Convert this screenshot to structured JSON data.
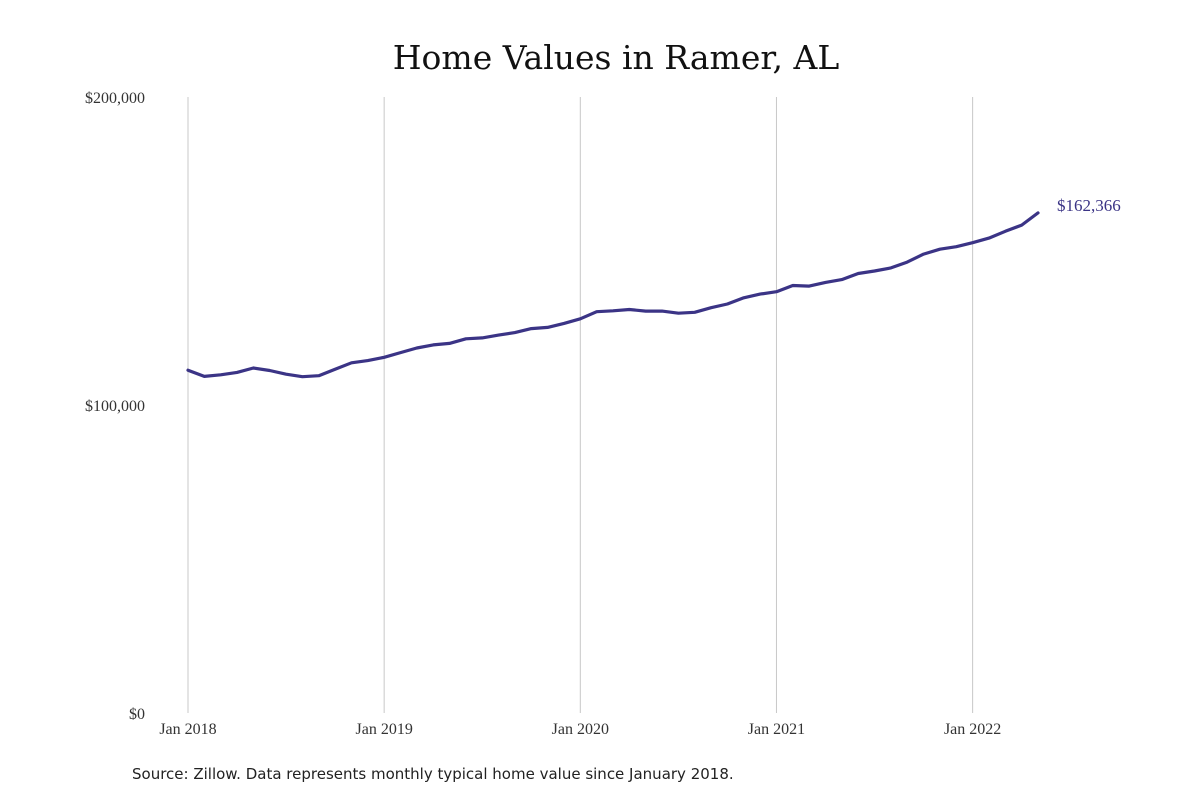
{
  "chart_data": {
    "type": "line",
    "title": "Home Values in Ramer, AL",
    "xlabel": "",
    "ylabel": "",
    "ylim": [
      0,
      200000
    ],
    "y_ticks": [
      {
        "value": 0,
        "label": "$0"
      },
      {
        "value": 100000,
        "label": "$100,000"
      },
      {
        "value": 200000,
        "label": "$200,000"
      }
    ],
    "x_ticks": [
      {
        "value": "2018-01",
        "label": "Jan 2018"
      },
      {
        "value": "2019-01",
        "label": "Jan 2019"
      },
      {
        "value": "2020-01",
        "label": "Jan 2020"
      },
      {
        "value": "2021-01",
        "label": "Jan 2021"
      },
      {
        "value": "2022-01",
        "label": "Jan 2022"
      }
    ],
    "grid": "vertical",
    "series": [
      {
        "color": "#3b3486",
        "x": [
          "2018-01",
          "2018-02",
          "2018-03",
          "2018-04",
          "2018-05",
          "2018-06",
          "2018-07",
          "2018-08",
          "2018-09",
          "2018-10",
          "2018-11",
          "2018-12",
          "2019-01",
          "2019-02",
          "2019-03",
          "2019-04",
          "2019-05",
          "2019-06",
          "2019-07",
          "2019-08",
          "2019-09",
          "2019-10",
          "2019-11",
          "2019-12",
          "2020-01",
          "2020-02",
          "2020-03",
          "2020-04",
          "2020-05",
          "2020-06",
          "2020-07",
          "2020-08",
          "2020-09",
          "2020-10",
          "2020-11",
          "2020-12",
          "2021-01",
          "2021-02",
          "2021-03",
          "2021-04",
          "2021-05",
          "2021-06",
          "2021-07",
          "2021-08",
          "2021-09",
          "2021-10",
          "2021-11",
          "2021-12",
          "2022-01",
          "2022-02",
          "2022-03",
          "2022-04",
          "2022-05"
        ],
        "values": [
          111300,
          109300,
          109800,
          110600,
          112000,
          111200,
          110000,
          109200,
          109500,
          111600,
          113700,
          114400,
          115500,
          117000,
          118500,
          119500,
          120000,
          121500,
          121800,
          122700,
          123500,
          124800,
          125200,
          126500,
          128000,
          130300,
          130600,
          131000,
          130500,
          130500,
          129800,
          130100,
          131600,
          132800,
          134800,
          136000,
          136800,
          138800,
          138600,
          139800,
          140700,
          142700,
          143500,
          144500,
          146400,
          149000,
          150600,
          151400,
          152700,
          154200,
          156400,
          158400,
          162366
        ]
      }
    ],
    "end_label": "$162,366"
  },
  "source": "Source: Zillow. Data represents monthly typical home value since January 2018."
}
